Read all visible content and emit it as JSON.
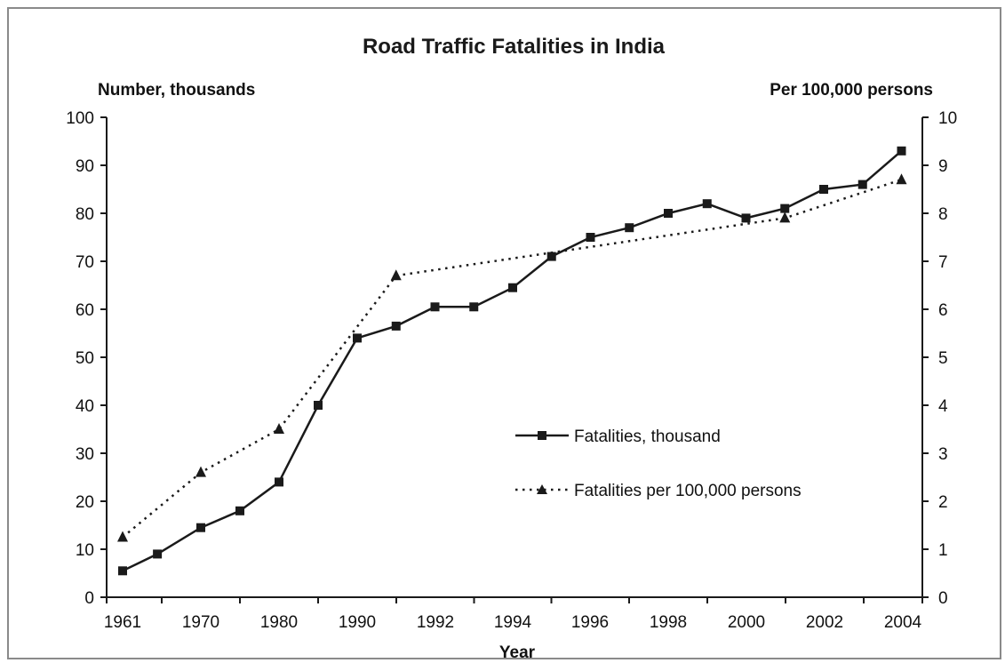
{
  "chart_data": {
    "type": "line",
    "title": "Road Traffic Fatalities in India",
    "xlabel": "Year",
    "ylabel_left": "Number, thousands",
    "ylabel_right": "Per 100,000 persons",
    "x_tick_labels": [
      "1961",
      "1970",
      "1980",
      "1990",
      "1992",
      "1994",
      "1996",
      "1998",
      "2000",
      "2002",
      "2004"
    ],
    "y_left_lim": [
      0,
      100
    ],
    "y_left_ticks": [
      0,
      10,
      20,
      30,
      40,
      50,
      60,
      70,
      80,
      90,
      100
    ],
    "y_right_lim": [
      0,
      10
    ],
    "y_right_ticks": [
      0,
      1,
      2,
      3,
      4,
      5,
      6,
      7,
      8,
      9,
      10
    ],
    "grid": false,
    "legend_position": "center-right",
    "series": [
      {
        "name": "Fatalities, thousand",
        "axis": "left",
        "style": "solid",
        "marker": "square",
        "x": [
          1961,
          1965,
          1970,
          1975,
          1980,
          1985,
          1990,
          1991,
          1992,
          1993,
          1994,
          1995,
          1996,
          1997,
          1998,
          1999,
          2000,
          2001,
          2002,
          2003,
          2004
        ],
        "values": [
          5.5,
          9.0,
          14.5,
          18.0,
          24.0,
          40.0,
          54.0,
          56.5,
          60.5,
          60.5,
          64.5,
          71.0,
          75.0,
          77.0,
          80.0,
          82.0,
          79.0,
          81.0,
          85.0,
          86.0,
          93.0
        ]
      },
      {
        "name": "Fatalities per 100,000 persons",
        "axis": "right",
        "style": "dotted",
        "marker": "triangle",
        "x": [
          1961,
          1970,
          1980,
          1991,
          2001,
          2004
        ],
        "values": [
          1.25,
          2.6,
          3.5,
          6.7,
          7.9,
          8.7
        ]
      }
    ]
  },
  "colors": {
    "line": "#1a1a1a",
    "frame": "#8a8a8a",
    "background": "#ffffff"
  }
}
